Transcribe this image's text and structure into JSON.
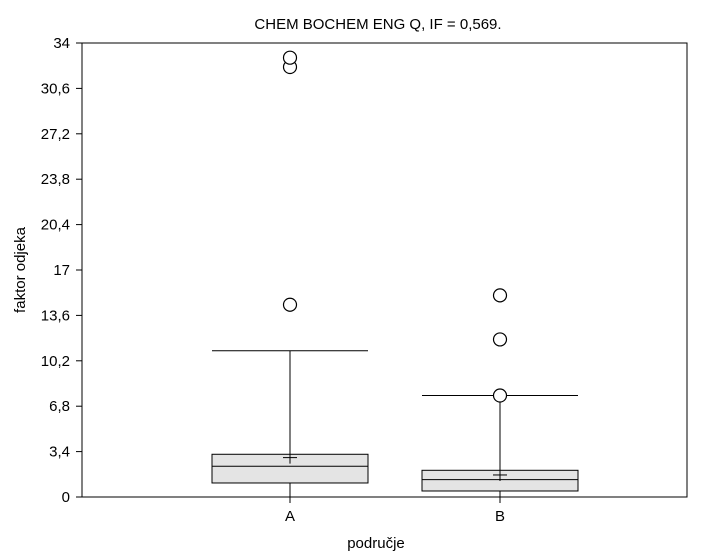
{
  "chart_data": {
    "type": "box",
    "title": "CHEM BOCHEM ENG Q, IF = 0,569.",
    "xlabel": "područje",
    "ylabel": "faktor odjeka",
    "ylim": [
      0,
      34
    ],
    "yticks": [
      "0",
      "3,4",
      "6,8",
      "10,2",
      "13,6",
      "17",
      "20,4",
      "23,8",
      "27,2",
      "30,6",
      "34"
    ],
    "categories": [
      "A",
      "B"
    ],
    "boxes": [
      {
        "category": "A",
        "whisker_low": 0.0,
        "q1": 1.05,
        "median": 2.3,
        "mean": 2.95,
        "q3": 3.2,
        "whisker_high": 10.95,
        "outliers": [
          14.4,
          32.2,
          32.9
        ]
      },
      {
        "category": "B",
        "whisker_low": 0.0,
        "q1": 0.45,
        "median": 1.3,
        "mean": 1.65,
        "q3": 2.0,
        "whisker_high": 7.6,
        "outliers": [
          7.6,
          11.8,
          15.1
        ]
      }
    ],
    "colors": {
      "box_fill": "#e4e4e4",
      "stroke": "#000000"
    },
    "grid": false,
    "legend": "none"
  }
}
